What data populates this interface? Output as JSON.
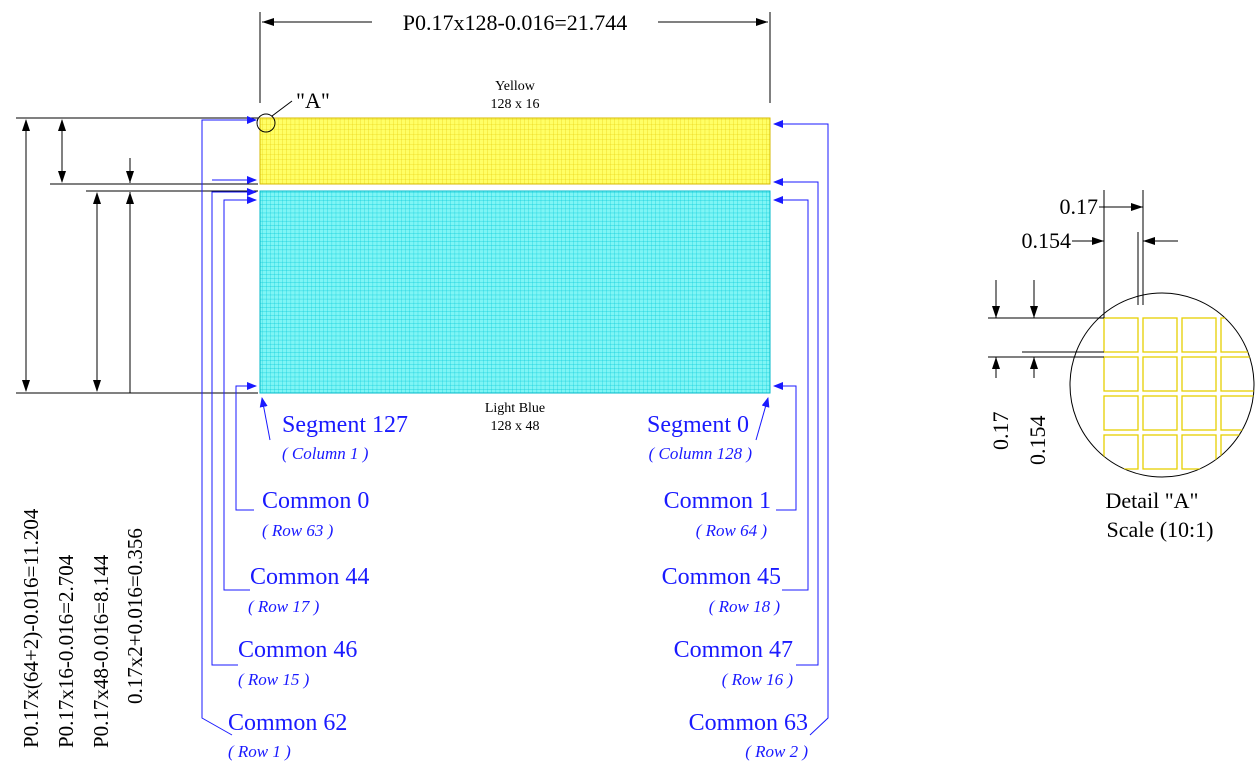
{
  "top_dimension": "P0.17x128-0.016=21.744",
  "detail_marker": "\"A\"",
  "yellow_region": {
    "name": "Yellow",
    "size": "128 x 16",
    "color": "#ffff00"
  },
  "blue_region": {
    "name": "Light Blue",
    "size": "128 x 48",
    "color": "#00ffff"
  },
  "left_dimensions": [
    "P0.17x(64+2)-0.016=11.204",
    "P0.17x16-0.016=2.704",
    "P0.17x48-0.016=8.144",
    "0.17x2+0.016=0.356"
  ],
  "left_labels": [
    {
      "title": "Segment 127",
      "sub": "( Column 1 )"
    },
    {
      "title": "Common 0",
      "sub": "( Row 63 )"
    },
    {
      "title": "Common 44",
      "sub": "( Row 17 )"
    },
    {
      "title": "Common 46",
      "sub": "( Row 15 )"
    },
    {
      "title": "Common 62",
      "sub": "( Row 1 )"
    }
  ],
  "right_labels": [
    {
      "title": "Segment 0",
      "sub": "( Column 128 )"
    },
    {
      "title": "Common 1",
      "sub": "( Row 64 )"
    },
    {
      "title": "Common 45",
      "sub": "( Row 18 )"
    },
    {
      "title": "Common 47",
      "sub": "( Row 16 )"
    },
    {
      "title": "Common 63",
      "sub": "( Row 2 )"
    }
  ],
  "detail": {
    "pitch_top": "0.17",
    "width_top": "0.154",
    "pitch_left": "0.17",
    "width_left": "0.154",
    "caption_line1": "Detail \"A\"",
    "caption_line2": "Scale (10:1)"
  },
  "colors": {
    "label_blue": "#1a1aff",
    "line_black": "#000000"
  }
}
